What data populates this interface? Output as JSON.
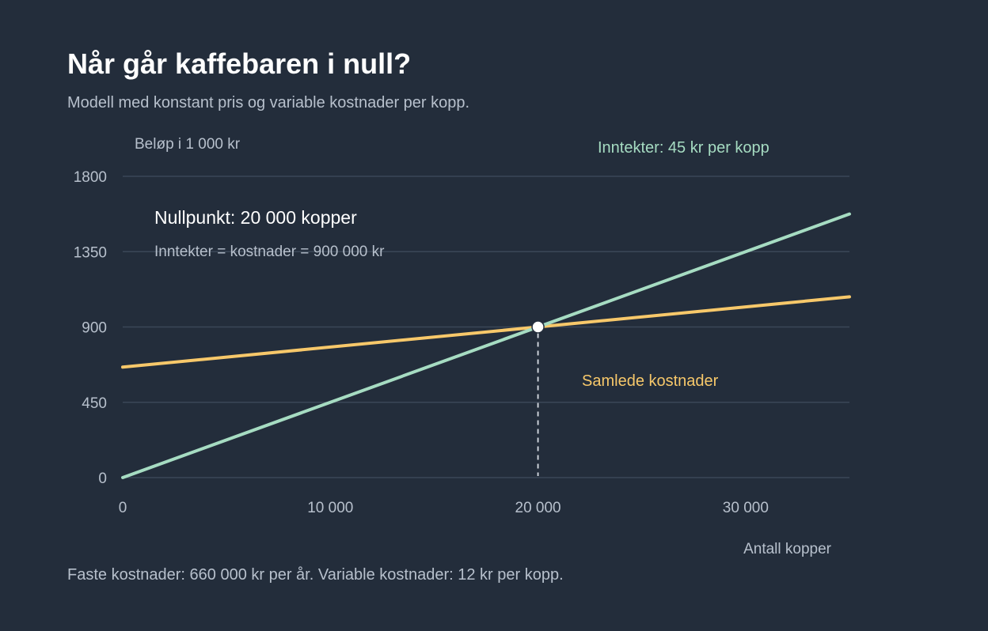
{
  "title": "Når går kaffebaren i null?",
  "subtitle": "Modell med konstant pris og variable kostnader per kopp.",
  "footnote": "Faste kostnader: 660 000 kr per år. Variable kostnader: 12 kr per kopp.",
  "colors": {
    "background": "#232d3b",
    "revenue": "#a6dcc2",
    "cost": "#f7c86a",
    "grid": "#3b4757",
    "text_muted": "#b7c0cc",
    "text_white": "#ffffff"
  },
  "chart_data": {
    "type": "line",
    "ylabel": "Beløp i 1 000 kr",
    "xlabel": "Antall kopper",
    "xlim": [
      0,
      35000
    ],
    "ylim": [
      0,
      1800
    ],
    "x_ticks": [
      0,
      10000,
      20000,
      30000
    ],
    "x_tick_labels": [
      "0",
      "10 000",
      "20 000",
      "30 000"
    ],
    "y_ticks": [
      0,
      450,
      900,
      1350,
      1800
    ],
    "y_tick_labels": [
      "0",
      "450",
      "900",
      "1350",
      "1800"
    ],
    "grid": true,
    "series": [
      {
        "name": "Inntekter: 45 kr per kopp",
        "color": "#a6dcc2",
        "x": [
          0,
          35000
        ],
        "y": [
          0,
          1575
        ]
      },
      {
        "name": "Samlede kostnader",
        "color": "#f7c86a",
        "x": [
          0,
          35000
        ],
        "y": [
          660,
          1080
        ]
      }
    ],
    "break_even": {
      "x": 20000,
      "y": 900,
      "label": "Nullpunkt: 20 000 kopper",
      "sublabel": "Inntekter = kostnader = 900 000 kr"
    }
  }
}
